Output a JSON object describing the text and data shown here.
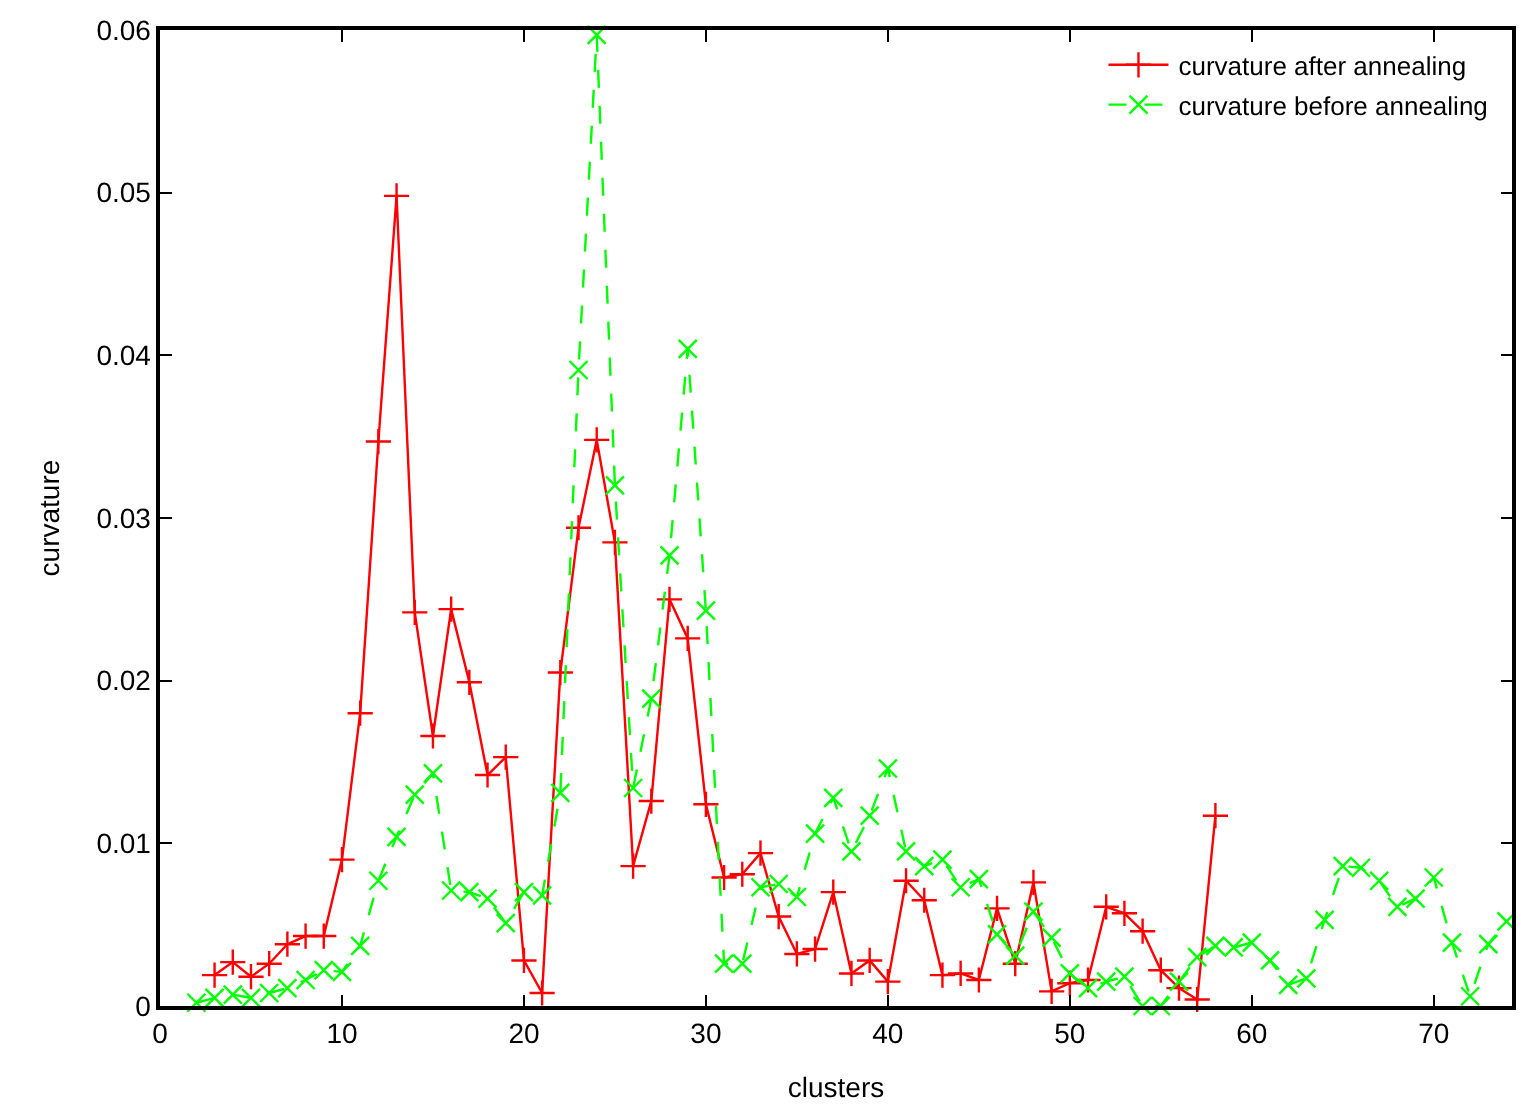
{
  "chart_data": {
    "type": "line",
    "xlabel": "clusters",
    "ylabel": "curvature",
    "xlim": [
      0,
      74.3
    ],
    "xticks": [
      0,
      10,
      20,
      30,
      40,
      50,
      60,
      70
    ],
    "ylim": [
      0,
      0.06
    ],
    "yticks": [
      0,
      0.01,
      0.02,
      0.03,
      0.04,
      0.05,
      0.06
    ],
    "legend": "top right",
    "series": [
      {
        "name": "curvature after annealing",
        "color": "#ff0000",
        "marker": "cross",
        "line_style": "solid",
        "x": [
          3,
          4,
          5,
          6,
          7,
          8,
          9,
          10,
          11,
          12,
          13,
          14,
          15,
          16,
          17,
          18,
          19,
          20,
          21,
          22,
          23,
          24,
          25,
          26,
          27,
          28,
          29,
          30,
          31,
          32,
          33,
          34,
          35,
          36,
          37,
          38,
          39,
          40,
          41,
          42,
          43,
          44,
          45,
          46,
          47,
          48,
          49,
          50,
          51,
          52,
          53,
          54,
          55,
          56,
          57,
          58
        ],
        "values": [
          0.0019,
          0.0027,
          0.0018,
          0.0026,
          0.0038,
          0.0043,
          0.0043,
          0.009,
          0.018,
          0.0347,
          0.0498,
          0.0242,
          0.0166,
          0.0244,
          0.0199,
          0.0142,
          0.0153,
          0.0028,
          0.0008,
          0.0205,
          0.0294,
          0.0348,
          0.0285,
          0.0086,
          0.0126,
          0.025,
          0.0226,
          0.0124,
          0.0079,
          0.0081,
          0.0094,
          0.0055,
          0.0032,
          0.0035,
          0.007,
          0.002,
          0.0028,
          0.0015,
          0.0077,
          0.0065,
          0.0019,
          0.002,
          0.0016,
          0.006,
          0.0026,
          0.0076,
          0.0009,
          0.0014,
          0.0016,
          0.0061,
          0.0057,
          0.0046,
          0.0022,
          0.0011,
          0.0004,
          0.0117
        ]
      },
      {
        "name": "curvature before annealing",
        "color": "#00ff00",
        "marker": "x",
        "line_style": "dashed",
        "x": [
          2,
          3,
          4,
          5,
          6,
          7,
          8,
          9,
          10,
          11,
          12,
          13,
          14,
          15,
          16,
          17,
          18,
          19,
          20,
          21,
          22,
          23,
          24,
          25,
          26,
          27,
          28,
          29,
          30,
          31,
          32,
          33,
          34,
          35,
          36,
          37,
          38,
          39,
          40,
          41,
          42,
          43,
          44,
          45,
          46,
          47,
          48,
          49,
          50,
          51,
          52,
          53,
          54,
          55,
          56,
          57,
          58,
          59,
          60,
          61,
          62,
          63,
          64,
          65,
          66,
          67,
          68,
          69,
          70,
          71,
          72,
          73,
          74
        ],
        "values": [
          0.0002,
          0.0005,
          0.0007,
          0.0005,
          0.0008,
          0.0011,
          0.0016,
          0.0022,
          0.0021,
          0.0037,
          0.0077,
          0.0104,
          0.013,
          0.0143,
          0.0071,
          0.007,
          0.0066,
          0.0051,
          0.007,
          0.0068,
          0.0131,
          0.0391,
          0.0597,
          0.032,
          0.0134,
          0.0189,
          0.0277,
          0.0404,
          0.0243,
          0.0026,
          0.0026,
          0.0073,
          0.0075,
          0.0067,
          0.0106,
          0.0128,
          0.0095,
          0.0117,
          0.0146,
          0.0095,
          0.0086,
          0.009,
          0.0073,
          0.0078,
          0.0044,
          0.0031,
          0.0058,
          0.0042,
          0.002,
          0.0011,
          0.0015,
          0.0018,
          0.0,
          0.0,
          0.0015,
          0.003,
          0.0037,
          0.0036,
          0.0039,
          0.0028,
          0.0013,
          0.0017,
          0.0053,
          0.0086,
          0.0085,
          0.0077,
          0.0061,
          0.0066,
          0.0079,
          0.0039,
          0.0006,
          0.0038,
          0.0052
        ]
      }
    ]
  }
}
